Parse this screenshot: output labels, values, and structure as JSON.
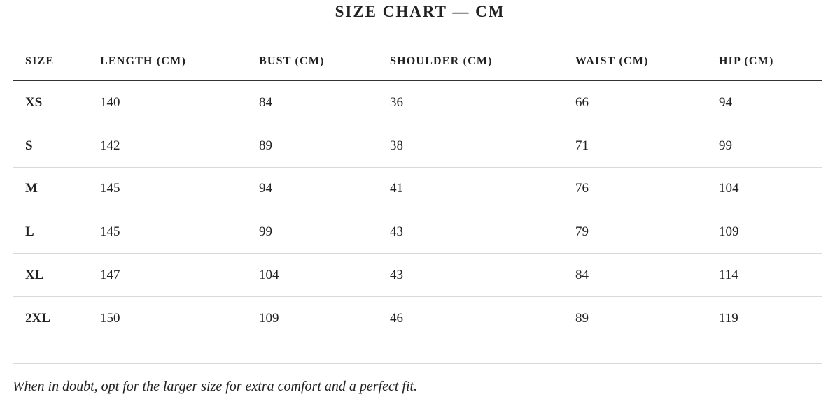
{
  "title": "SIZE CHART — CM",
  "table": {
    "headers": [
      "SIZE",
      "LENGTH (CM)",
      "BUST (CM)",
      "SHOULDER (CM)",
      "WAIST (CM)",
      "HIP (CM)"
    ],
    "rows": [
      [
        "XS",
        140,
        84,
        36,
        66,
        94
      ],
      [
        "S",
        142,
        89,
        38,
        71,
        99
      ],
      [
        "M",
        145,
        94,
        41,
        76,
        104
      ],
      [
        "L",
        145,
        99,
        43,
        79,
        109
      ],
      [
        "XL",
        147,
        104,
        43,
        84,
        114
      ],
      [
        "2XL",
        150,
        109,
        46,
        89,
        119
      ]
    ]
  },
  "note": "When in doubt, opt for the larger size for extra comfort and a perfect fit."
}
